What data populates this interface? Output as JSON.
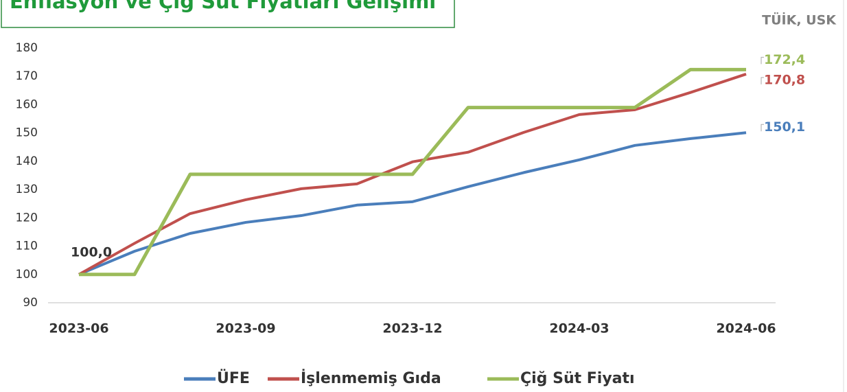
{
  "chart_data": {
    "type": "line",
    "title": "Enflasyon ve Çiğ Süt Fiyatları Gelişimi",
    "source": "TÜİK, USK",
    "categories": [
      "2023-06",
      null,
      null,
      "2023-09",
      null,
      null,
      "2023-12",
      null,
      null,
      "2024-03",
      null,
      null,
      "2024-06"
    ],
    "series": [
      {
        "name": "ÜFE",
        "color": "#4a7ebb",
        "values": [
          100,
          108.2,
          114.5,
          118.4,
          120.8,
          124.5,
          125.7,
          131,
          136,
          140.5,
          145.6,
          148,
          150.1
        ],
        "value_labels": [
          "100,0",
          null,
          null,
          null,
          null,
          null,
          null,
          null,
          null,
          null,
          null,
          null,
          "150,1"
        ]
      },
      {
        "name": "İşlenmemiş Gıda",
        "color": "#c0504d",
        "values": [
          100,
          111,
          121.5,
          126.4,
          130.3,
          132,
          139.8,
          143.2,
          150.2,
          156.5,
          158.2,
          164.3,
          170.8
        ],
        "value_labels": [
          null,
          null,
          null,
          null,
          null,
          null,
          null,
          null,
          null,
          null,
          null,
          null,
          "170,8"
        ]
      },
      {
        "name": "Çiğ Süt Fiyatı",
        "color": "#9bbb59",
        "values": [
          100,
          100,
          135.4,
          135.4,
          135.4,
          135.4,
          135.4,
          159,
          159,
          159,
          159,
          172.4,
          172.4
        ],
        "value_labels": [
          null,
          null,
          null,
          null,
          null,
          null,
          null,
          null,
          null,
          null,
          null,
          null,
          "172,4"
        ]
      }
    ],
    "ylim": [
      90,
      180
    ],
    "yticks": [
      90,
      100,
      110,
      120,
      130,
      140,
      150,
      160,
      170,
      180
    ],
    "grid": false
  }
}
